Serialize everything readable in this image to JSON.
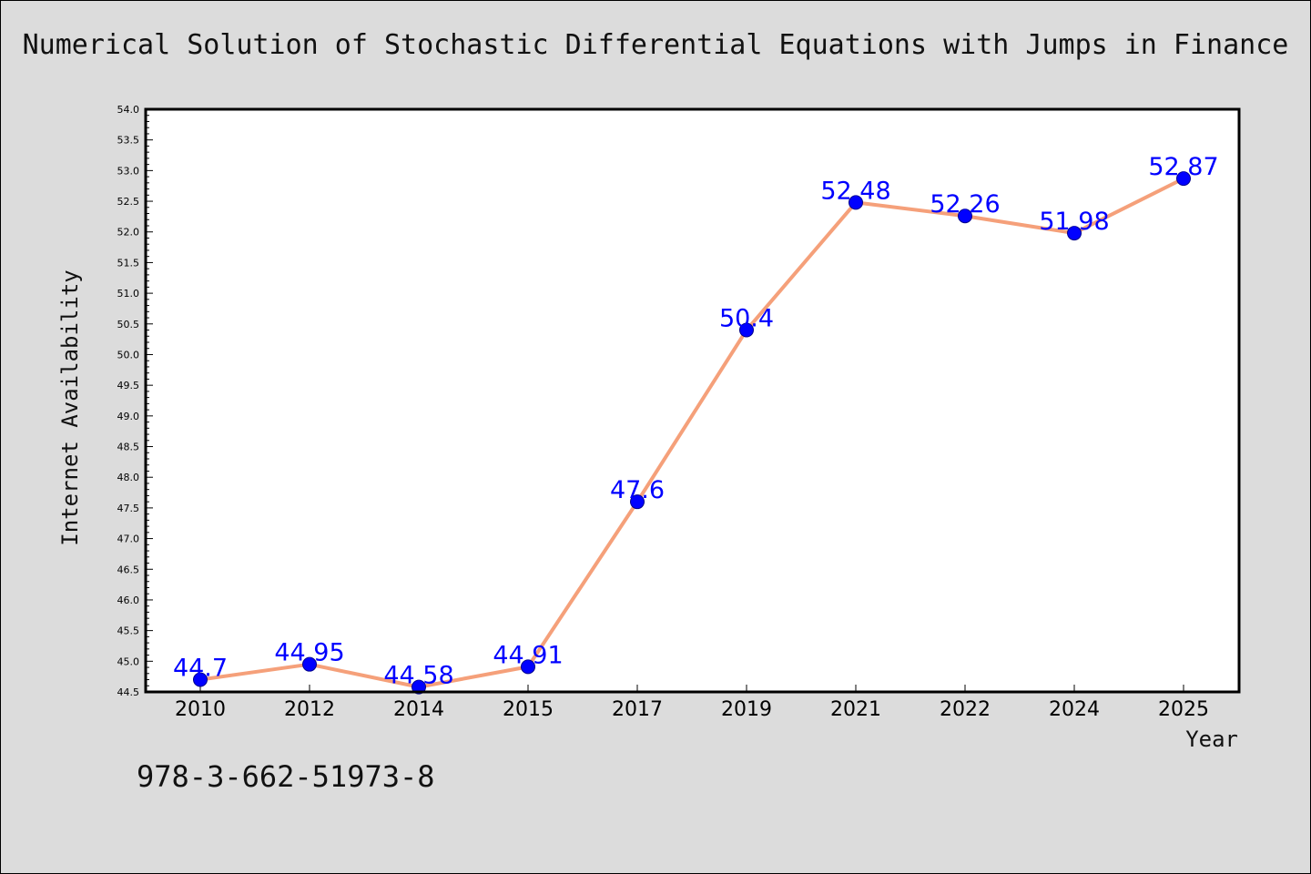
{
  "title": "Numerical Solution of Stochastic Differential Equations with Jumps in Finance",
  "footer_code": "978-3-662-51973-8",
  "colors": {
    "background": "#dcdcdc",
    "plot_area": "#ffffff",
    "line": "#f5a07a",
    "marker": "#0000ff",
    "data_label": "#0000ff"
  },
  "chart_data": {
    "type": "line",
    "title": "Numerical Solution of Stochastic Differential Equations with Jumps in Finance",
    "xlabel": "Year",
    "ylabel": "Internet Availability",
    "categories": [
      "2010",
      "2012",
      "2014",
      "2015",
      "2017",
      "2019",
      "2021",
      "2022",
      "2024",
      "2025"
    ],
    "series": [
      {
        "values": [
          44.7,
          44.95,
          44.58,
          44.91,
          47.6,
          50.4,
          52.48,
          52.26,
          51.98,
          52.87
        ],
        "labels": [
          "44.7",
          "44.95",
          "44.58",
          "44.91",
          "47.6",
          "50.4",
          "52.48",
          "52.26",
          "51.98",
          "52.87"
        ]
      }
    ],
    "ylim": [
      44.5,
      54.0
    ],
    "yticks": [
      "44.5",
      "45.0",
      "45.5",
      "46.0",
      "46.5",
      "47.0",
      "47.5",
      "48.0",
      "48.5",
      "49.0",
      "49.5",
      "50.0",
      "50.5",
      "51.0",
      "51.5",
      "52.0",
      "52.5",
      "53.0",
      "53.5",
      "54.0"
    ],
    "grid": false,
    "legend": "none"
  }
}
